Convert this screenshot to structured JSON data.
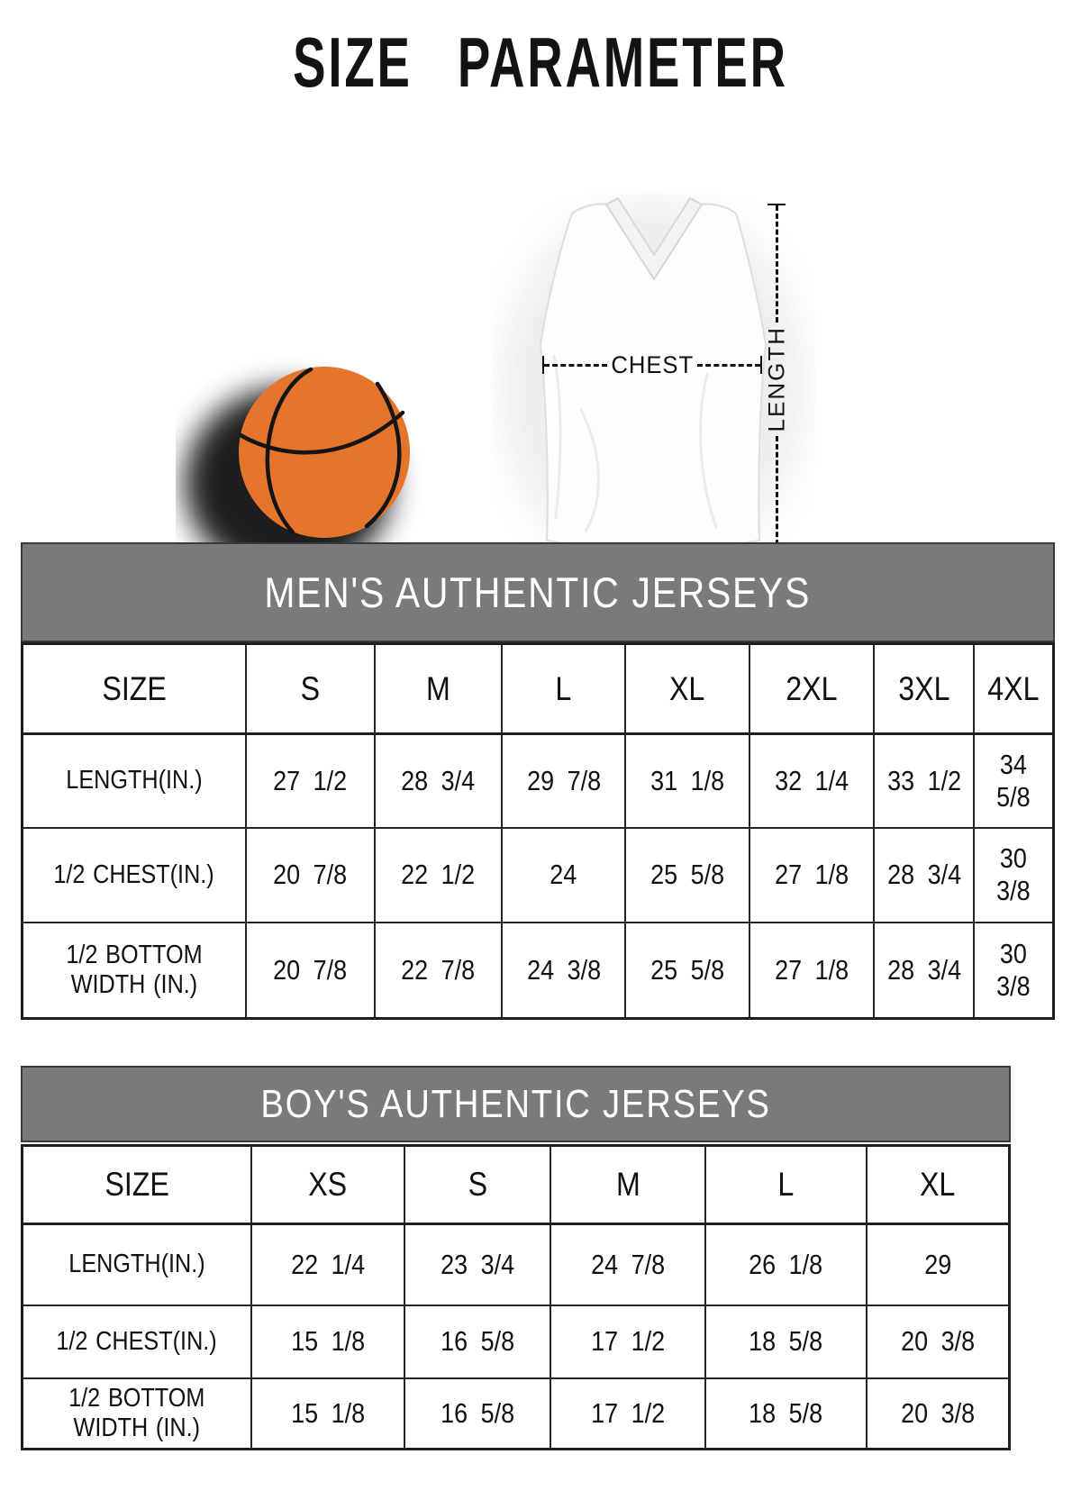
{
  "page": {
    "title": "SIZE PARAMETER"
  },
  "diagram": {
    "chest_label": "CHEST",
    "length_label": "LENGTH",
    "basketball_icon": "basketball-illustration",
    "jersey_icon": "jersey-illustration"
  },
  "colors": {
    "band_gray": "#7a7a7a",
    "border_dark": "#252525",
    "basketball_orange": "#e5752c"
  },
  "tables": [
    {
      "title": "MEN'S AUTHENTIC JERSEYS",
      "columns": [
        "SIZE",
        "S",
        "M",
        "L",
        "XL",
        "2XL",
        "3XL",
        "4XL"
      ],
      "rows": [
        {
          "label": "LENGTH(IN.)",
          "values": [
            "27 1/2",
            "28 3/4",
            "29 7/8",
            "31 1/8",
            "32 1/4",
            "33 1/2",
            "34 5/8"
          ]
        },
        {
          "label": "1/2 CHEST(IN.)",
          "values": [
            "20 7/8",
            "22 1/2",
            "24",
            "25 5/8",
            "27 1/8",
            "28 3/4",
            "30 3/8"
          ]
        },
        {
          "label": "1/2 BOTTOM WIDTH (IN.)",
          "values": [
            "20 7/8",
            "22 7/8",
            "24 3/8",
            "25 5/8",
            "27 1/8",
            "28 3/4",
            "30 3/8"
          ]
        }
      ]
    },
    {
      "title": "BOY'S AUTHENTIC JERSEYS",
      "columns": [
        "SIZE",
        "XS",
        "S",
        "M",
        "L",
        "XL"
      ],
      "rows": [
        {
          "label": "LENGTH(IN.)",
          "values": [
            "22 1/4",
            "23 3/4",
            "24 7/8",
            "26 1/8",
            "29"
          ]
        },
        {
          "label": "1/2 CHEST(IN.)",
          "values": [
            "15 1/8",
            "16 5/8",
            "17 1/2",
            "18 5/8",
            "20 3/8"
          ]
        },
        {
          "label": "1/2 BOTTOM WIDTH (IN.)",
          "values": [
            "15 1/8",
            "16 5/8",
            "17 1/2",
            "18 5/8",
            "20 3/8"
          ]
        }
      ]
    }
  ]
}
